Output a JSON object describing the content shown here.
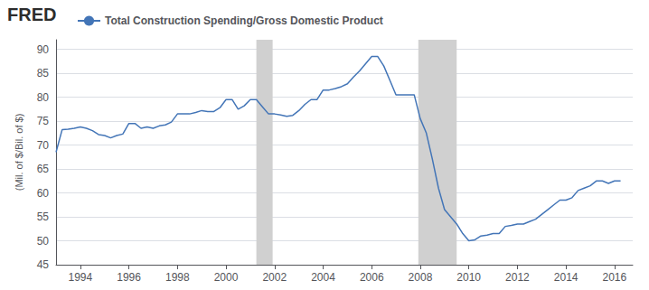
{
  "chart_data": {
    "type": "line",
    "annotations": [
      "FRED"
    ],
    "ylabel": "(Mil. of $/Bil. of $)",
    "x": [
      1993.0,
      1993.25,
      1993.5,
      1993.75,
      1994.0,
      1994.25,
      1994.5,
      1994.75,
      1995.0,
      1995.25,
      1995.5,
      1995.75,
      1996.0,
      1996.25,
      1996.5,
      1996.75,
      1997.0,
      1997.25,
      1997.5,
      1997.75,
      1998.0,
      1998.25,
      1998.5,
      1998.75,
      1999.0,
      1999.25,
      1999.5,
      1999.75,
      2000.0,
      2000.25,
      2000.5,
      2000.75,
      2001.0,
      2001.25,
      2001.5,
      2001.75,
      2002.0,
      2002.25,
      2002.5,
      2002.75,
      2003.0,
      2003.25,
      2003.5,
      2003.75,
      2004.0,
      2004.25,
      2004.5,
      2004.75,
      2005.0,
      2005.25,
      2005.5,
      2005.75,
      2006.0,
      2006.25,
      2006.5,
      2006.75,
      2007.0,
      2007.25,
      2007.5,
      2007.75,
      2008.0,
      2008.25,
      2008.5,
      2008.75,
      2009.0,
      2009.25,
      2009.5,
      2009.75,
      2010.0,
      2010.25,
      2010.5,
      2010.75,
      2011.0,
      2011.25,
      2011.5,
      2011.75,
      2012.0,
      2012.25,
      2012.5,
      2012.75,
      2013.0,
      2013.25,
      2013.5,
      2013.75,
      2014.0,
      2014.25,
      2014.5,
      2014.75,
      2015.0,
      2015.25,
      2015.5,
      2015.75,
      2016.0,
      2016.25
    ],
    "series": [
      {
        "name": "Total Construction Spending/Gross Domestic Product",
        "color": "#4375b7",
        "values": [
          68.5,
          73.2,
          73.3,
          73.5,
          73.8,
          73.5,
          73.0,
          72.2,
          72.0,
          71.5,
          72.0,
          72.3,
          74.5,
          74.5,
          73.5,
          73.8,
          73.5,
          74.0,
          74.2,
          74.8,
          76.5,
          76.5,
          76.5,
          76.8,
          77.2,
          77.0,
          77.0,
          77.8,
          79.5,
          79.5,
          77.5,
          78.2,
          79.5,
          79.5,
          78.0,
          76.5,
          76.5,
          76.3,
          76.0,
          76.2,
          77.2,
          78.5,
          79.5,
          79.5,
          81.5,
          81.5,
          81.8,
          82.2,
          82.8,
          84.2,
          85.5,
          87.0,
          88.5,
          88.5,
          86.5,
          83.5,
          80.5,
          80.5,
          80.5,
          80.5,
          75.5,
          72.5,
          67.0,
          61.0,
          56.5,
          55.0,
          53.5,
          51.5,
          50.0,
          50.2,
          51.0,
          51.2,
          51.5,
          51.5,
          53.0,
          53.2,
          53.5,
          53.5,
          54.0,
          54.5,
          55.5,
          56.5,
          57.5,
          58.5,
          58.5,
          59.0,
          60.5,
          61.0,
          61.5,
          62.5,
          62.5,
          62.0,
          62.5,
          62.5
        ]
      }
    ],
    "recessions": [
      [
        2001.25,
        2001.92
      ],
      [
        2007.92,
        2009.5
      ]
    ],
    "xlim": [
      1993.0,
      2016.75
    ],
    "xticks": [
      1994,
      1996,
      1998,
      2000,
      2002,
      2004,
      2006,
      2008,
      2010,
      2012,
      2014,
      2016
    ],
    "ylim": [
      45,
      92
    ],
    "yticks": [
      45,
      50,
      55,
      60,
      65,
      70,
      75,
      80,
      85,
      90
    ],
    "grid": true,
    "legend": "top-left"
  }
}
